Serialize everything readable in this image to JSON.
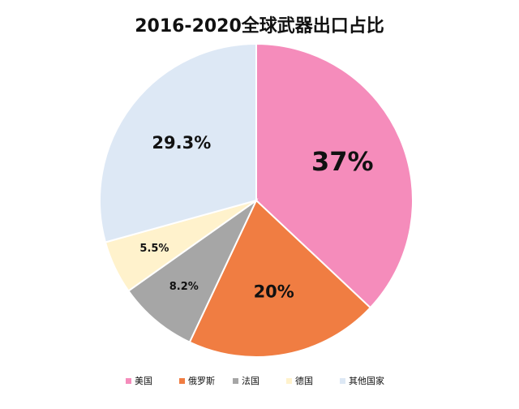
{
  "chart_data": {
    "type": "pie",
    "title": "2016-2020全球武器出口占比",
    "categories": [
      "美国",
      "俄罗斯",
      "法国",
      "德国",
      "其他国家"
    ],
    "values": [
      37,
      20,
      8.2,
      5.5,
      29.3
    ],
    "value_labels": [
      "37%",
      "20%",
      "8.2%",
      "5.5%",
      "29.3%"
    ],
    "colors": [
      "#f58cbb",
      "#f07d42",
      "#a6a6a6",
      "#fff2cc",
      "#dde8f5"
    ],
    "legend": "bottom"
  }
}
